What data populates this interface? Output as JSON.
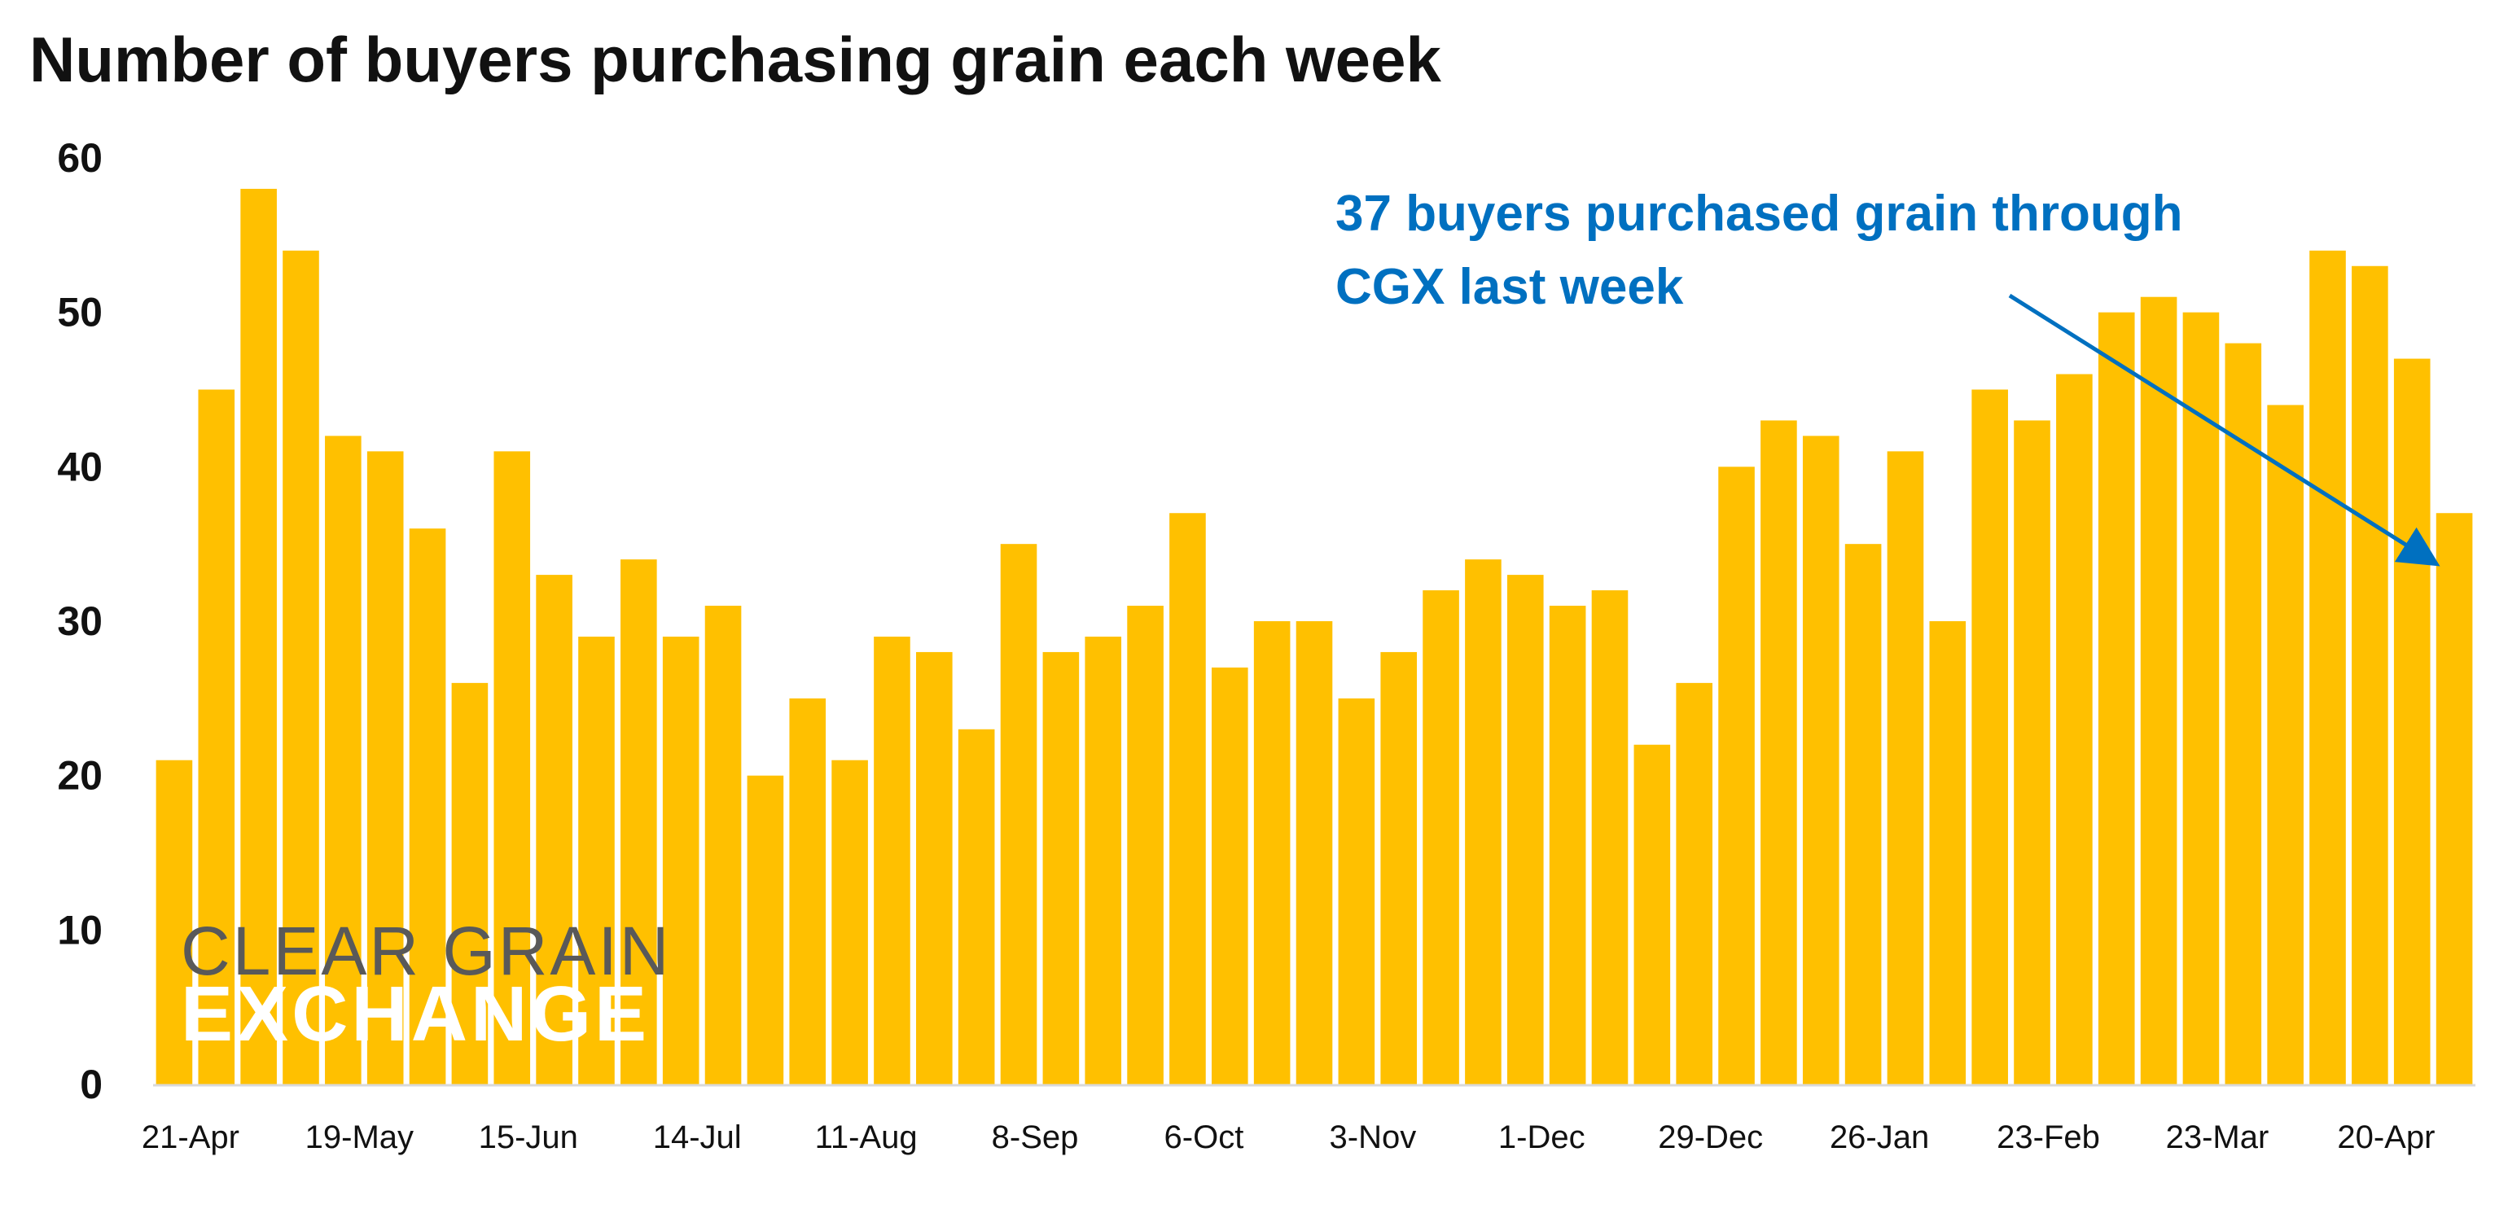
{
  "chart_data": {
    "type": "bar",
    "title": "Number of buyers purchasing grain each week",
    "xlabel": "",
    "ylabel": "",
    "ylim": [
      0,
      60
    ],
    "yticks": [
      0,
      10,
      20,
      30,
      40,
      50,
      60
    ],
    "grid": false,
    "legend": "none",
    "bar_color": "#FFC000",
    "values": [
      21,
      45,
      58,
      54,
      42,
      41,
      36,
      26,
      41,
      33,
      29,
      34,
      29,
      31,
      20,
      25,
      21,
      29,
      28,
      23,
      35,
      28,
      29,
      31,
      37,
      27,
      30,
      30,
      25,
      28,
      32,
      34,
      33,
      31,
      32,
      22,
      26,
      40,
      43,
      42,
      35,
      41,
      30,
      45,
      43,
      46,
      50,
      51,
      50,
      48,
      44,
      54,
      53,
      47,
      37
    ],
    "x_tick_labels": [
      {
        "bar_index": 0,
        "label": "21-Apr"
      },
      {
        "bar_index": 4,
        "label": "19-May"
      },
      {
        "bar_index": 8,
        "label": "15-Jun"
      },
      {
        "bar_index": 12,
        "label": "14-Jul"
      },
      {
        "bar_index": 16,
        "label": "11-Aug"
      },
      {
        "bar_index": 20,
        "label": "8-Sep"
      },
      {
        "bar_index": 24,
        "label": "6-Oct"
      },
      {
        "bar_index": 28,
        "label": "3-Nov"
      },
      {
        "bar_index": 32,
        "label": "1-Dec"
      },
      {
        "bar_index": 36,
        "label": "29-Dec"
      },
      {
        "bar_index": 40,
        "label": "26-Jan"
      },
      {
        "bar_index": 44,
        "label": "23-Feb"
      },
      {
        "bar_index": 48,
        "label": "23-Mar"
      },
      {
        "bar_index": 52,
        "label": "20-Apr"
      }
    ],
    "annotation": {
      "lines": [
        "37 buyers purchased grain through",
        "CGX last week"
      ],
      "color": "#0070C0",
      "points_to_bar_index": 54
    }
  },
  "logo": {
    "line1": "CLEAR GRAIN",
    "line2": "EXCHANGE",
    "line1_color": "#595959",
    "line2_color": "#ffffff"
  }
}
